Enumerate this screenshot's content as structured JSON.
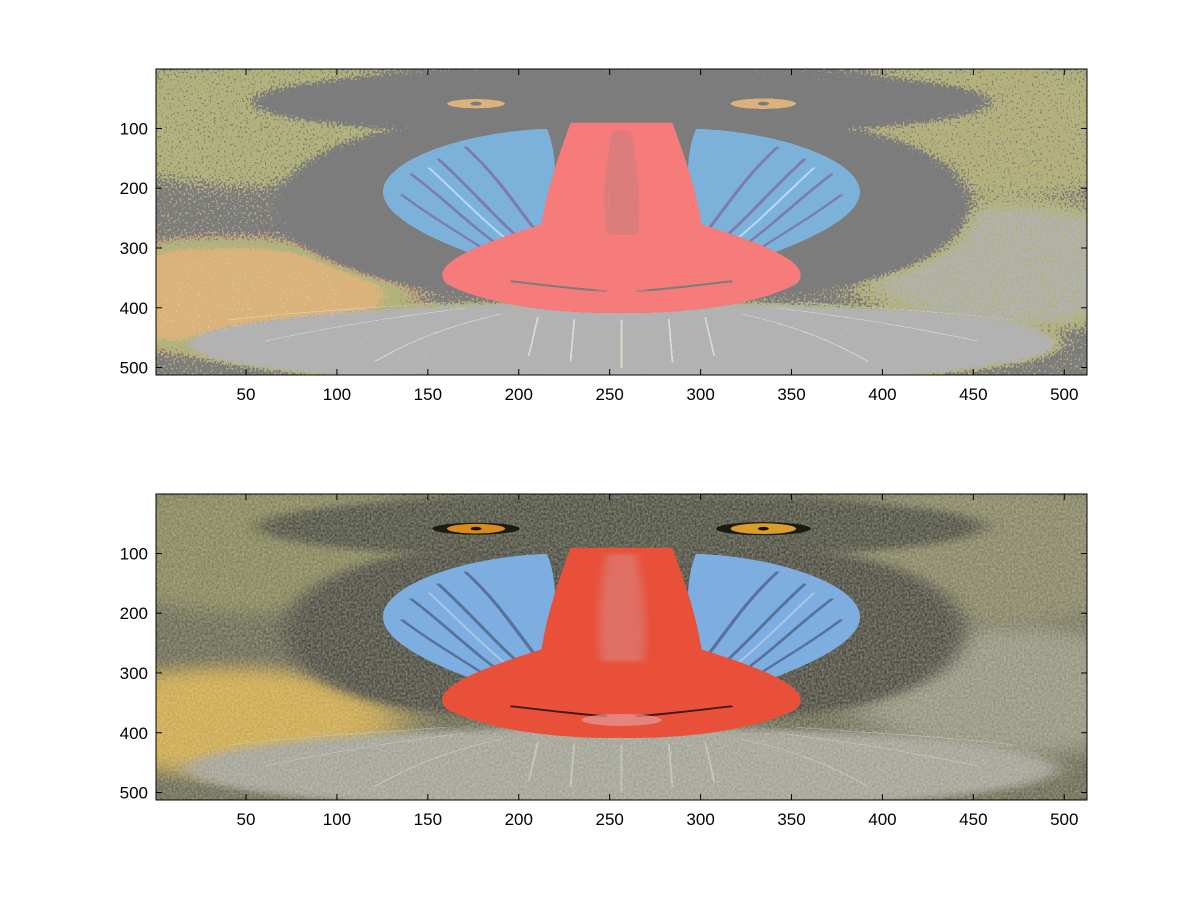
{
  "figure": {
    "background": "#ffffff",
    "axis_color": "#000000"
  },
  "panels": [
    {
      "name": "top",
      "rendering": "color-quantized",
      "x_ticks": [
        "50",
        "100",
        "150",
        "200",
        "250",
        "300",
        "350",
        "400",
        "450",
        "500"
      ],
      "y_ticks": [
        "100",
        "200",
        "300",
        "400",
        "500"
      ],
      "x_range": [
        0.5,
        512.5
      ],
      "y_range": [
        0.5,
        512.5
      ]
    },
    {
      "name": "bottom",
      "rendering": "full-color",
      "x_ticks": [
        "50",
        "100",
        "150",
        "200",
        "250",
        "300",
        "350",
        "400",
        "450",
        "500"
      ],
      "y_ticks": [
        "100",
        "200",
        "300",
        "400",
        "500"
      ],
      "x_range": [
        0.5,
        512.5
      ],
      "y_range": [
        0.5,
        512.5
      ]
    }
  ],
  "palette": {
    "fur_dark": "#3e3f33",
    "fur_olive": "#6f6e4a",
    "fur_gold": "#c9a23e",
    "fur_grey": "#8f8f86",
    "snout_red": "#e8503a",
    "cheek_blue": "#7eaee0",
    "cheek_blue_light": "#a7c3e0",
    "eye_orange": "#d98a1c",
    "whisker": "#c8c8c8"
  }
}
